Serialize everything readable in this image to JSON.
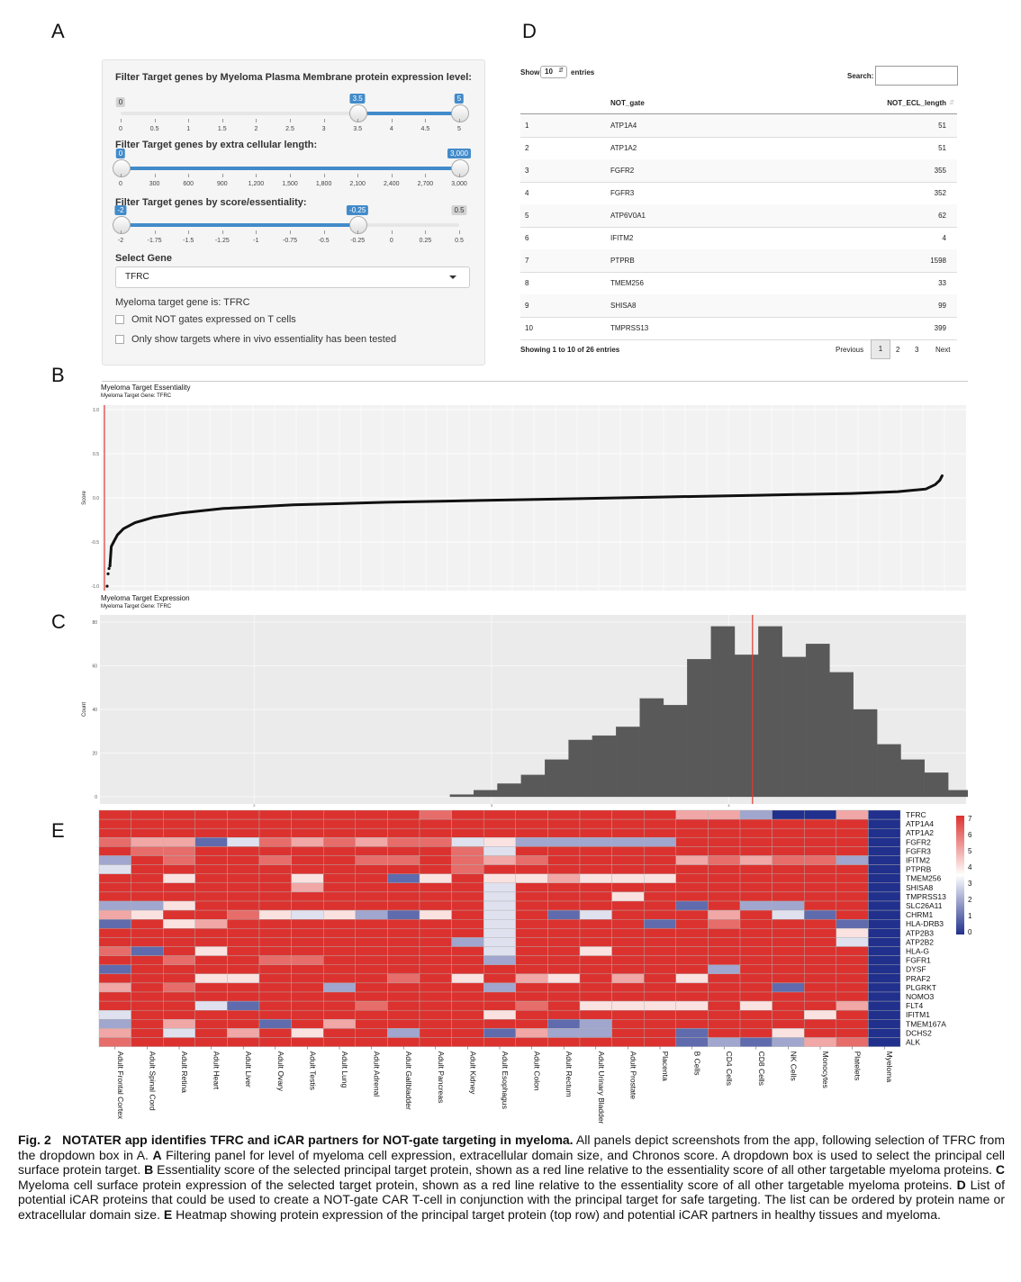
{
  "panel_labels": {
    "a": "A",
    "b": "B",
    "c": "C",
    "d": "D",
    "e": "E"
  },
  "panelA": {
    "filter1_title": "Filter Target genes by Myeloma Plasma Membrane protein expression level:",
    "filter1_min_badge": "0",
    "filter1_low": "3.5",
    "filter1_high": "5",
    "filter1_ticks": [
      "0",
      "0.5",
      "1",
      "1.5",
      "2",
      "2.5",
      "3",
      "3.5",
      "4",
      "4.5",
      "5"
    ],
    "filter2_title": "Filter Target genes by extra cellular length:",
    "filter2_low": "0",
    "filter2_high": "3,000",
    "filter2_ticks": [
      "0",
      "300",
      "600",
      "900",
      "1,200",
      "1,500",
      "1,800",
      "2,100",
      "2,400",
      "2,700",
      "3,000"
    ],
    "filter3_title": "Filter Target genes by score/essentiality:",
    "filter3_low": "-2",
    "filter3_high": "-0.25",
    "filter3_max_badge": "0.5",
    "filter3_ticks": [
      "-2",
      "-1.75",
      "-1.5",
      "-1.25",
      "-1",
      "-0.75",
      "-0.5",
      "-0.25",
      "0",
      "0.25",
      "0.5"
    ],
    "select_label": "Select Gene",
    "select_value": "TFRC",
    "target_text": "Myeloma target gene is: TFRC",
    "checkbox1": "Omit NOT gates expressed on T cells",
    "checkbox2": "Only show targets where in vivo essentiality has been tested"
  },
  "panelD": {
    "show_label": "Show",
    "show_value": "10",
    "entries_label": "entries",
    "search_label": "Search:",
    "col1": "NOT_gate",
    "col2": "NOT_ECL_length",
    "rows": [
      {
        "i": "1",
        "gene": "ATP1A4",
        "len": "51"
      },
      {
        "i": "2",
        "gene": "ATP1A2",
        "len": "51"
      },
      {
        "i": "3",
        "gene": "FGFR2",
        "len": "355"
      },
      {
        "i": "4",
        "gene": "FGFR3",
        "len": "352"
      },
      {
        "i": "5",
        "gene": "ATP6V0A1",
        "len": "62"
      },
      {
        "i": "6",
        "gene": "IFITM2",
        "len": "4"
      },
      {
        "i": "7",
        "gene": "PTPRB",
        "len": "1598"
      },
      {
        "i": "8",
        "gene": "TMEM256",
        "len": "33"
      },
      {
        "i": "9",
        "gene": "SHISA8",
        "len": "99"
      },
      {
        "i": "10",
        "gene": "TMPRSS13",
        "len": "399"
      }
    ],
    "showing": "Showing 1 to 10 of 26 entries",
    "prev": "Previous",
    "pages": [
      "1",
      "2",
      "3"
    ],
    "next": "Next"
  },
  "chart_data": [
    {
      "type": "scatter",
      "title": "Myeloma Target Essentiality",
      "subtitle": "Myeloma Target Gene: TFRC",
      "ylabel": "Score",
      "ylim": [
        -1.05,
        1.05
      ],
      "yticks": [
        "1.0",
        "0.5",
        "0.0",
        "-0.5",
        "-1.0"
      ],
      "marker_rank": 0,
      "marker_color": "#e03c31",
      "curve_points": [
        [
          0,
          -1.0
        ],
        [
          2,
          -0.86
        ],
        [
          4,
          -0.8
        ],
        [
          6,
          -0.77
        ],
        [
          9,
          -0.55
        ],
        [
          14,
          -0.5
        ],
        [
          22,
          -0.42
        ],
        [
          35,
          -0.35
        ],
        [
          60,
          -0.28
        ],
        [
          100,
          -0.22
        ],
        [
          160,
          -0.17
        ],
        [
          250,
          -0.12
        ],
        [
          400,
          -0.08
        ],
        [
          600,
          -0.05
        ],
        [
          800,
          -0.03
        ],
        [
          1000,
          -0.01
        ],
        [
          1200,
          0.01
        ],
        [
          1400,
          0.03
        ],
        [
          1600,
          0.05
        ],
        [
          1700,
          0.07
        ],
        [
          1760,
          0.1
        ],
        [
          1780,
          0.15
        ],
        [
          1790,
          0.2
        ],
        [
          1795,
          0.25
        ]
      ]
    },
    {
      "type": "bar",
      "title": "Myeloma Target Expression",
      "subtitle": "Myeloma Target Gene: TFRC",
      "ylabel": "Count",
      "ylim": [
        0,
        80
      ],
      "yticks": [
        "80",
        "60",
        "40",
        "20",
        "0"
      ],
      "xticks": [
        "2",
        "3",
        "4"
      ],
      "xlim": [
        1.35,
        5.0
      ],
      "bin_start": 2.825,
      "bin_width": 0.1,
      "values": [
        1,
        3,
        6,
        10,
        17,
        26,
        28,
        32,
        45,
        42,
        63,
        78,
        65,
        78,
        64,
        70,
        57,
        40,
        24,
        17,
        11,
        3
      ],
      "marker_x": 4.1,
      "marker_color": "#e03c31"
    },
    {
      "type": "heatmap",
      "rows": [
        "TFRC",
        "ATP1A4",
        "ATP1A2",
        "FGFR2",
        "FGFR3",
        "IFITM2",
        "PTPRB",
        "TMEM256",
        "SHISA8",
        "TMPRSS13",
        "SLC26A11",
        "CHRM1",
        "HLA-DRB3",
        "ATP2B3",
        "ATP2B2",
        "HLA-G",
        "FGFR1",
        "DYSF",
        "PRAF2",
        "PLGRKT",
        "NOMO3",
        "FLT4",
        "IFITM1",
        "TMEM167A",
        "DCHS2",
        "ALK"
      ],
      "columns": [
        "Adult Frontal Cortex",
        "Adult Spinal Cord",
        "Adult Retina",
        "Adult Heart",
        "Adult Liver",
        "Adult Ovary",
        "Adult Testis",
        "Adult Lung",
        "Adult Adrenal",
        "Adult Gallbladder",
        "Adult Pancreas",
        "Adult Kidney",
        "Adult Esophagus",
        "Adult Colon",
        "Adult Rectum",
        "Adult Urinary Bladder",
        "Adult Prostate",
        "Placenta",
        "B Cells",
        "CD4 Cells",
        "CD8 Cells",
        "NK Cells",
        "Monocytes",
        "Platelets",
        "Myeloma"
      ],
      "legend_ticks": [
        "7",
        "6",
        "5",
        "4",
        "3",
        "2",
        "1",
        "0"
      ],
      "values": [
        [
          7,
          7,
          7,
          7,
          7,
          7,
          7,
          7,
          7,
          7,
          6,
          7,
          7,
          7,
          7,
          7,
          7,
          7,
          5,
          5,
          2,
          0,
          0,
          5,
          0
        ],
        [
          7,
          7,
          7,
          7,
          7,
          7,
          7,
          7,
          7,
          7,
          7,
          7,
          7,
          7,
          7,
          7,
          7,
          7,
          7,
          7,
          7,
          7,
          7,
          7,
          0
        ],
        [
          7,
          7,
          7,
          7,
          7,
          7,
          7,
          7,
          7,
          7,
          7,
          7,
          7,
          7,
          7,
          7,
          7,
          7,
          7,
          7,
          7,
          7,
          7,
          7,
          0
        ],
        [
          6,
          5,
          5,
          1,
          3,
          6,
          5,
          6,
          5,
          6,
          6,
          3,
          4,
          2,
          2,
          2,
          2,
          2,
          7,
          7,
          7,
          7,
          7,
          7,
          0
        ],
        [
          7,
          6,
          6,
          7,
          7,
          7,
          7,
          7,
          7,
          7,
          7,
          6,
          3,
          7,
          7,
          7,
          7,
          7,
          7,
          7,
          7,
          7,
          7,
          7,
          0
        ],
        [
          2,
          7,
          6,
          7,
          7,
          6,
          7,
          7,
          6,
          6,
          7,
          6,
          5,
          6,
          7,
          7,
          7,
          7,
          5,
          6,
          5,
          6,
          6,
          2,
          0
        ],
        [
          3,
          7,
          7,
          7,
          7,
          7,
          7,
          7,
          7,
          7,
          7,
          6,
          7,
          7,
          7,
          7,
          7,
          7,
          7,
          7,
          7,
          7,
          7,
          7,
          0
        ],
        [
          7,
          7,
          4,
          7,
          7,
          7,
          4,
          7,
          7,
          1,
          4,
          7,
          4,
          4,
          5,
          4,
          4,
          4,
          7,
          7,
          7,
          7,
          7,
          7,
          0
        ],
        [
          7,
          7,
          7,
          7,
          7,
          7,
          5,
          7,
          7,
          7,
          7,
          7,
          3,
          7,
          7,
          7,
          7,
          7,
          7,
          7,
          7,
          7,
          7,
          7,
          0
        ],
        [
          7,
          7,
          7,
          7,
          7,
          7,
          7,
          7,
          7,
          7,
          7,
          7,
          3,
          7,
          7,
          7,
          4,
          7,
          7,
          7,
          7,
          7,
          7,
          7,
          0
        ],
        [
          2,
          2,
          4,
          7,
          7,
          7,
          7,
          7,
          7,
          7,
          7,
          7,
          3,
          7,
          7,
          7,
          7,
          7,
          1,
          7,
          2,
          2,
          7,
          7,
          0
        ],
        [
          5,
          4,
          7,
          7,
          6,
          4,
          3,
          4,
          2,
          1,
          4,
          7,
          3,
          7,
          1,
          3,
          7,
          7,
          7,
          5,
          7,
          3,
          1,
          7,
          0
        ],
        [
          1,
          7,
          4,
          5,
          7,
          7,
          7,
          7,
          7,
          7,
          7,
          7,
          3,
          7,
          7,
          7,
          7,
          1,
          7,
          6,
          7,
          7,
          7,
          1,
          0
        ],
        [
          7,
          7,
          7,
          7,
          7,
          7,
          7,
          7,
          7,
          7,
          7,
          7,
          3,
          7,
          7,
          7,
          7,
          7,
          7,
          7,
          7,
          7,
          7,
          4,
          0
        ],
        [
          7,
          7,
          7,
          7,
          7,
          7,
          7,
          7,
          7,
          7,
          7,
          2,
          3,
          7,
          7,
          7,
          7,
          7,
          7,
          7,
          7,
          7,
          7,
          3,
          0
        ],
        [
          6,
          1,
          7,
          4,
          7,
          7,
          7,
          7,
          7,
          7,
          7,
          7,
          3,
          7,
          7,
          4,
          7,
          7,
          7,
          7,
          7,
          7,
          7,
          7,
          0
        ],
        [
          7,
          7,
          6,
          7,
          7,
          6,
          6,
          7,
          7,
          7,
          7,
          7,
          2,
          7,
          7,
          7,
          7,
          7,
          7,
          7,
          7,
          7,
          7,
          7,
          0
        ],
        [
          1,
          7,
          7,
          7,
          7,
          7,
          7,
          7,
          7,
          7,
          7,
          7,
          7,
          7,
          7,
          7,
          7,
          7,
          7,
          2,
          7,
          7,
          7,
          7,
          0
        ],
        [
          7,
          7,
          7,
          4,
          4,
          7,
          7,
          7,
          7,
          6,
          7,
          4,
          7,
          5,
          4,
          7,
          5,
          7,
          4,
          7,
          7,
          7,
          7,
          7,
          0
        ],
        [
          5,
          7,
          6,
          7,
          7,
          7,
          7,
          2,
          7,
          7,
          7,
          7,
          2,
          7,
          7,
          7,
          7,
          7,
          7,
          7,
          7,
          1,
          7,
          7,
          0
        ],
        [
          7,
          7,
          7,
          7,
          7,
          7,
          7,
          7,
          7,
          7,
          7,
          7,
          7,
          7,
          7,
          7,
          7,
          7,
          7,
          7,
          7,
          7,
          7,
          7,
          0
        ],
        [
          7,
          7,
          7,
          3,
          1,
          7,
          7,
          7,
          6,
          7,
          7,
          7,
          7,
          6,
          7,
          4,
          4,
          4,
          4,
          7,
          4,
          7,
          7,
          5,
          0
        ],
        [
          3,
          7,
          7,
          7,
          7,
          7,
          7,
          7,
          7,
          7,
          7,
          7,
          4,
          7,
          7,
          7,
          7,
          7,
          7,
          7,
          7,
          7,
          4,
          7,
          0
        ],
        [
          2,
          7,
          5,
          7,
          7,
          1,
          7,
          5,
          7,
          7,
          7,
          7,
          7,
          7,
          1,
          2,
          7,
          7,
          7,
          7,
          7,
          7,
          7,
          7,
          0
        ],
        [
          5,
          7,
          3,
          7,
          5,
          7,
          4,
          7,
          7,
          2,
          7,
          7,
          1,
          5,
          2,
          2,
          7,
          7,
          1,
          7,
          7,
          4,
          7,
          7,
          0
        ],
        [
          6,
          7,
          7,
          7,
          7,
          7,
          7,
          7,
          7,
          7,
          7,
          7,
          7,
          7,
          7,
          7,
          7,
          7,
          1,
          2,
          1,
          2,
          5,
          6,
          0
        ]
      ]
    }
  ],
  "caption": {
    "fig": "Fig. 2",
    "title": "NOTATER app identifies TFRC and iCAR partners for NOT-gate targeting in myeloma.",
    "intro": " All panels depict screenshots from the app, following selection of TFRC from the dropdown box in A. ",
    "a_label": "A",
    "a_text": " Filtering panel for level of myeloma cell expression, extracellular domain size, and Chronos score. A dropdown box is used to select the principal cell surface protein target. ",
    "b_label": "B",
    "b_text": " Essentiality score of the selected principal target protein, shown as a red line relative to the essentiality score of all other targetable myeloma proteins. ",
    "c_label": "C",
    "c_text": " Myeloma cell surface protein expression of the selected target protein, shown as a red line relative to the essentiality score of all other targetable myeloma proteins. ",
    "d_label": "D",
    "d_text": " List of potential iCAR proteins that could be used to create a NOT-gate CAR T-cell in conjunction with the principal target for safe targeting. The list can be ordered by protein name or extracellular domain size. ",
    "e_label": "E",
    "e_text": " Heatmap showing protein expression of the principal target protein (top row) and potential iCAR partners in healthy tissues and myeloma."
  }
}
